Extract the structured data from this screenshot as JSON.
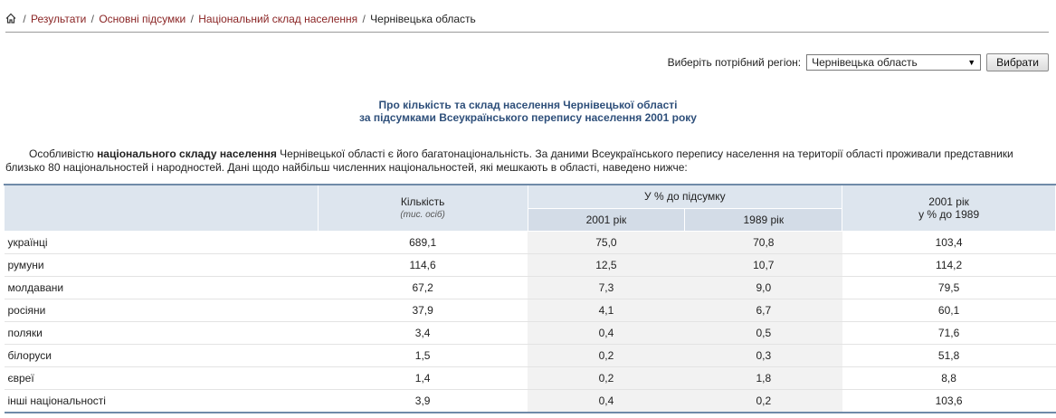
{
  "breadcrumb": {
    "items": [
      "Результати",
      "Основні підсумки",
      "Національний склад населення"
    ],
    "current": "Чернівецька область",
    "separator": "/"
  },
  "region": {
    "label": "Виберіть потрібний регіон:",
    "selected": "Чернівецька область",
    "button": "Вибрати"
  },
  "title": {
    "line1": "Про кількість та склад населення Чернівецької області",
    "line2": "за підсумками Всеукраїнського перепису населення 2001 року"
  },
  "intro": {
    "part1": "Особливістю ",
    "bold": "національного складу населення",
    "part2": " Чернівецької області є його багатонаціональність. За даними Всеукраїнського перепису населення на території області проживали представники близько 80 національностей і народностей. Дані щодо найбільш численних національностей, які мешкають в області, наведено нижче:"
  },
  "table": {
    "headers": {
      "count": "Кількість",
      "count_unit": "(тис. осіб)",
      "percent_group": "У % до підсумку",
      "year2001": "2001 рік",
      "year1989": "1989 рік",
      "ratio_line1": "2001 рік",
      "ratio_line2": "у % до 1989"
    },
    "rows": [
      {
        "name": "українці",
        "count": "689,1",
        "p2001": "75,0",
        "p1989": "70,8",
        "ratio": "103,4"
      },
      {
        "name": "румуни",
        "count": "114,6",
        "p2001": "12,5",
        "p1989": "10,7",
        "ratio": "114,2"
      },
      {
        "name": "молдавани",
        "count": "67,2",
        "p2001": "7,3",
        "p1989": "9,0",
        "ratio": "79,5"
      },
      {
        "name": "росіяни",
        "count": "37,9",
        "p2001": "4,1",
        "p1989": "6,7",
        "ratio": "60,1"
      },
      {
        "name": "поляки",
        "count": "3,4",
        "p2001": "0,4",
        "p1989": "0,5",
        "ratio": "71,6"
      },
      {
        "name": "білоруси",
        "count": "1,5",
        "p2001": "0,2",
        "p1989": "0,3",
        "ratio": "51,8"
      },
      {
        "name": "євреї",
        "count": "1,4",
        "p2001": "0,2",
        "p1989": "1,8",
        "ratio": "8,8"
      },
      {
        "name": "інші національності",
        "count": "3,9",
        "p2001": "0,4",
        "p1989": "0,2",
        "ratio": "103,6"
      }
    ]
  }
}
